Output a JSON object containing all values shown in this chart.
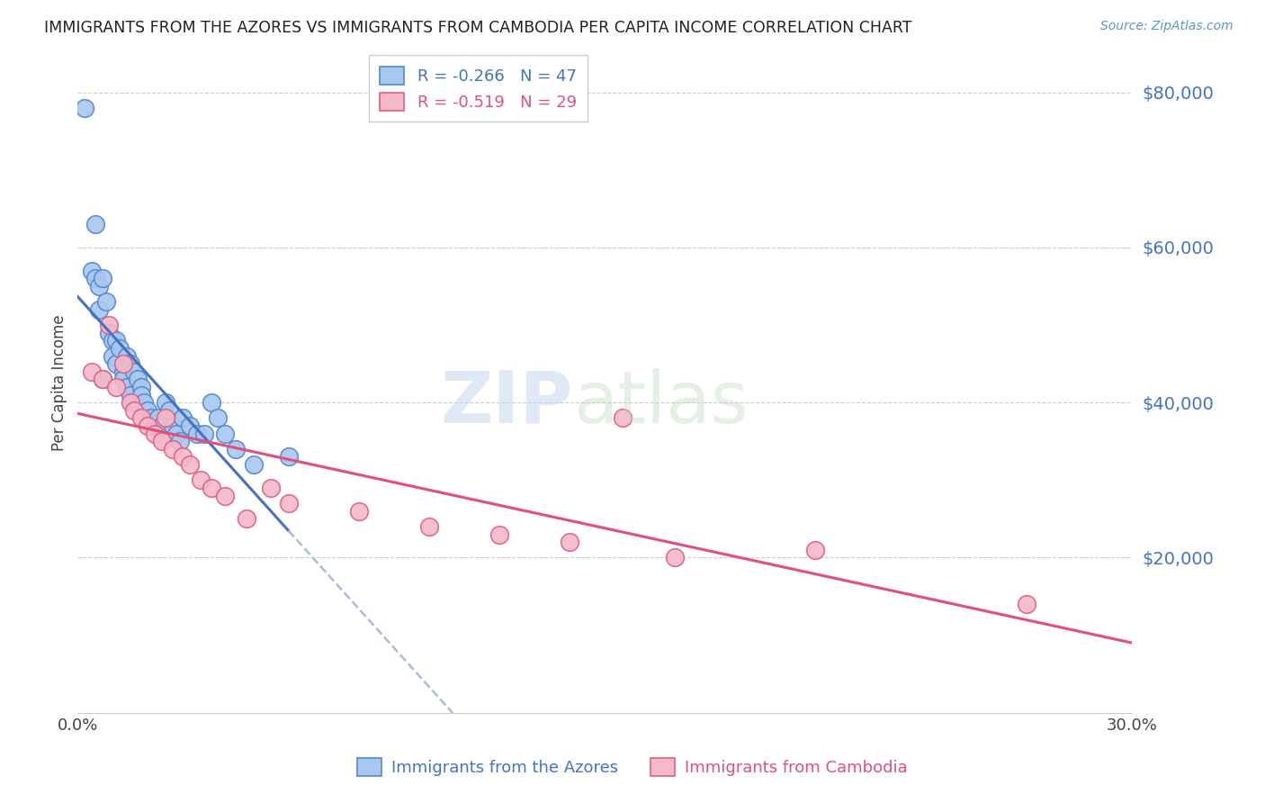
{
  "title": "IMMIGRANTS FROM THE AZORES VS IMMIGRANTS FROM CAMBODIA PER CAPITA INCOME CORRELATION CHART",
  "source": "Source: ZipAtlas.com",
  "ylabel": "Per Capita Income",
  "yticks": [
    0,
    20000,
    40000,
    60000,
    80000
  ],
  "xlim": [
    0.0,
    0.3
  ],
  "ylim": [
    0,
    85000
  ],
  "legend_azores": "R = -0.266   N = 47",
  "legend_cambodia": "R = -0.519   N = 29",
  "legend_label_azores": "Immigrants from the Azores",
  "legend_label_cambodia": "Immigrants from Cambodia",
  "color_azores_fill": "#a8c8f0",
  "color_cambodia_fill": "#f4b8c8",
  "color_azores_edge": "#5588cc",
  "color_cambodia_edge": "#e06080",
  "color_azores_line": "#4472c4",
  "color_cambodia_line": "#e0507a",
  "color_dashed": "#aabbdd",
  "azores_x": [
    0.002,
    0.004,
    0.005,
    0.005,
    0.006,
    0.006,
    0.007,
    0.007,
    0.008,
    0.009,
    0.01,
    0.01,
    0.011,
    0.011,
    0.012,
    0.013,
    0.013,
    0.014,
    0.014,
    0.015,
    0.015,
    0.016,
    0.016,
    0.017,
    0.018,
    0.018,
    0.019,
    0.02,
    0.021,
    0.022,
    0.023,
    0.024,
    0.025,
    0.026,
    0.027,
    0.028,
    0.029,
    0.03,
    0.032,
    0.034,
    0.036,
    0.038,
    0.04,
    0.042,
    0.045,
    0.05,
    0.06
  ],
  "azores_y": [
    78000,
    57000,
    63000,
    56000,
    55000,
    52000,
    56000,
    43000,
    53000,
    49000,
    48000,
    46000,
    48000,
    45000,
    47000,
    44000,
    43000,
    46000,
    42000,
    45000,
    41000,
    44000,
    40000,
    43000,
    42000,
    41000,
    40000,
    39000,
    38000,
    37000,
    38000,
    37000,
    40000,
    39000,
    37000,
    36000,
    35000,
    38000,
    37000,
    36000,
    36000,
    40000,
    38000,
    36000,
    34000,
    32000,
    33000
  ],
  "cambodia_x": [
    0.004,
    0.007,
    0.009,
    0.011,
    0.013,
    0.015,
    0.016,
    0.018,
    0.02,
    0.022,
    0.024,
    0.025,
    0.027,
    0.03,
    0.032,
    0.035,
    0.038,
    0.042,
    0.048,
    0.055,
    0.06,
    0.08,
    0.1,
    0.12,
    0.14,
    0.17,
    0.21,
    0.27,
    0.155
  ],
  "cambodia_y": [
    44000,
    43000,
    50000,
    42000,
    45000,
    40000,
    39000,
    38000,
    37000,
    36000,
    35000,
    38000,
    34000,
    33000,
    32000,
    30000,
    29000,
    28000,
    25000,
    29000,
    27000,
    26000,
    24000,
    23000,
    22000,
    20000,
    21000,
    14000,
    38000
  ]
}
